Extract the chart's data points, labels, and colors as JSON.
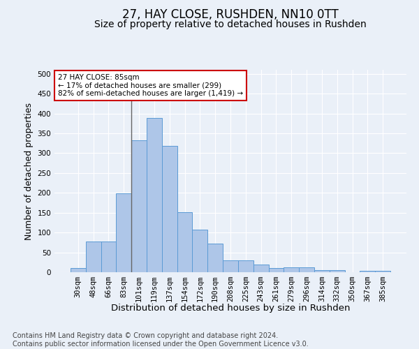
{
  "title": "27, HAY CLOSE, RUSHDEN, NN10 0TT",
  "subtitle": "Size of property relative to detached houses in Rushden",
  "xlabel": "Distribution of detached houses by size in Rushden",
  "ylabel": "Number of detached properties",
  "categories": [
    "30sqm",
    "48sqm",
    "66sqm",
    "83sqm",
    "101sqm",
    "119sqm",
    "137sqm",
    "154sqm",
    "172sqm",
    "190sqm",
    "208sqm",
    "225sqm",
    "243sqm",
    "261sqm",
    "279sqm",
    "296sqm",
    "314sqm",
    "332sqm",
    "350sqm",
    "367sqm",
    "385sqm"
  ],
  "values": [
    10,
    77,
    78,
    199,
    333,
    388,
    319,
    151,
    107,
    72,
    30,
    30,
    20,
    10,
    13,
    13,
    5,
    5,
    0,
    4,
    4
  ],
  "bar_color": "#aec6e8",
  "bar_edge_color": "#5b9bd5",
  "vline_x_index": 3,
  "vline_color": "#666666",
  "annotation_text": "27 HAY CLOSE: 85sqm\n← 17% of detached houses are smaller (299)\n82% of semi-detached houses are larger (1,419) →",
  "annotation_box_color": "#ffffff",
  "annotation_box_edge_color": "#cc0000",
  "ylim": [
    0,
    510
  ],
  "yticks": [
    0,
    50,
    100,
    150,
    200,
    250,
    300,
    350,
    400,
    450,
    500
  ],
  "bg_color": "#eaf0f8",
  "plot_bg_color": "#eaf0f8",
  "grid_color": "#ffffff",
  "footer": "Contains HM Land Registry data © Crown copyright and database right 2024.\nContains public sector information licensed under the Open Government Licence v3.0.",
  "title_fontsize": 12,
  "subtitle_fontsize": 10,
  "xlabel_fontsize": 9.5,
  "ylabel_fontsize": 9,
  "tick_fontsize": 7.5,
  "footer_fontsize": 7
}
